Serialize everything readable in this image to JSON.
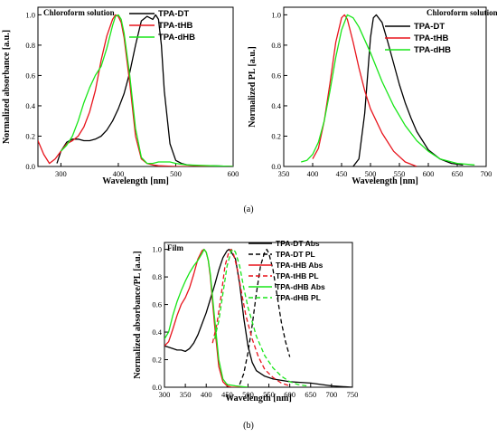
{
  "colors": {
    "black": "#000000",
    "red": "#e8141c",
    "green": "#19e619",
    "axis": "#000000"
  },
  "captions": {
    "a": "(a)",
    "b": "(b)"
  },
  "chart_data": [
    {
      "type": "line",
      "panel": "a-left",
      "annotation": "Chloroform solution",
      "xlabel": "Wavelength [nm]",
      "ylabel": "Normalized absorbance [a.u.]",
      "xlim": [
        260,
        600
      ],
      "ylim": [
        0,
        1.05
      ],
      "xticks": [
        300,
        400,
        500,
        600
      ],
      "xtick_labels": [
        "300",
        "400",
        "500",
        "600"
      ],
      "yticks": [
        0.0,
        0.2,
        0.4,
        0.6,
        0.8,
        1.0
      ],
      "ytick_labels": [
        "0.0",
        "0.2",
        "0.4",
        "0.6",
        "0.8",
        "1.0"
      ],
      "series": [
        {
          "name": "TPA-DT",
          "color": "#000000",
          "dash": "solid",
          "x": [
            293,
            300,
            310,
            320,
            330,
            340,
            350,
            360,
            370,
            380,
            390,
            400,
            410,
            420,
            430,
            440,
            450,
            460,
            465,
            470,
            475,
            480,
            490,
            500,
            510,
            520,
            540,
            560,
            600
          ],
          "y": [
            0.02,
            0.1,
            0.16,
            0.18,
            0.18,
            0.17,
            0.17,
            0.18,
            0.2,
            0.24,
            0.3,
            0.38,
            0.48,
            0.62,
            0.8,
            0.96,
            0.99,
            0.97,
            1.0,
            0.97,
            0.8,
            0.5,
            0.15,
            0.04,
            0.02,
            0.01,
            0.005,
            0.005,
            0.0
          ]
        },
        {
          "name": "TPA-tHB",
          "color": "#e8141c",
          "dash": "solid",
          "x": [
            260,
            270,
            280,
            290,
            300,
            310,
            320,
            330,
            340,
            350,
            360,
            370,
            380,
            390,
            395,
            400,
            405,
            410,
            420,
            430,
            440,
            450,
            460,
            470,
            500,
            600
          ],
          "y": [
            0.17,
            0.08,
            0.02,
            0.05,
            0.1,
            0.15,
            0.17,
            0.2,
            0.26,
            0.36,
            0.5,
            0.7,
            0.86,
            0.97,
            1.0,
            0.99,
            0.95,
            0.85,
            0.55,
            0.2,
            0.05,
            0.02,
            0.01,
            0.005,
            0.0,
            0.0
          ]
        },
        {
          "name": "TPA-dHB",
          "color": "#19e619",
          "dash": "solid",
          "x": [
            300,
            310,
            320,
            330,
            340,
            350,
            360,
            370,
            380,
            390,
            395,
            400,
            405,
            410,
            420,
            430,
            440,
            450,
            460,
            470,
            480,
            490,
            500,
            520,
            600
          ],
          "y": [
            0.1,
            0.14,
            0.2,
            0.3,
            0.42,
            0.52,
            0.6,
            0.66,
            0.78,
            0.93,
            0.99,
            1.0,
            0.97,
            0.88,
            0.6,
            0.25,
            0.06,
            0.02,
            0.02,
            0.03,
            0.03,
            0.03,
            0.02,
            0.01,
            0.0
          ]
        }
      ]
    },
    {
      "type": "line",
      "panel": "a-right",
      "annotation": "Chloroform solution",
      "xlabel": "Wavelength [nm]",
      "ylabel": "Normalized PL [a.u.]",
      "xlim": [
        350,
        700
      ],
      "ylim": [
        0,
        1.05
      ],
      "xticks": [
        350,
        400,
        450,
        500,
        550,
        600,
        650,
        700
      ],
      "xtick_labels": [
        "350",
        "400",
        "450",
        "500",
        "550",
        "600",
        "650",
        "700"
      ],
      "yticks": [
        0.0,
        0.2,
        0.4,
        0.6,
        0.8,
        1.0
      ],
      "ytick_labels": [
        "0.0",
        "0.2",
        "0.4",
        "0.6",
        "0.8",
        "1.0"
      ],
      "series": [
        {
          "name": "TPA-DT",
          "color": "#000000",
          "dash": "solid",
          "x": [
            470,
            480,
            490,
            500,
            505,
            510,
            520,
            530,
            540,
            550,
            560,
            570,
            580,
            600,
            620,
            640,
            660
          ],
          "y": [
            0.0,
            0.05,
            0.35,
            0.85,
            0.98,
            1.0,
            0.95,
            0.82,
            0.68,
            0.54,
            0.42,
            0.32,
            0.23,
            0.11,
            0.05,
            0.02,
            0.01
          ]
        },
        {
          "name": "TPA-tHB",
          "color": "#e8141c",
          "dash": "solid",
          "x": [
            400,
            410,
            420,
            430,
            440,
            450,
            455,
            460,
            470,
            480,
            490,
            500,
            520,
            540,
            560,
            580
          ],
          "y": [
            0.05,
            0.12,
            0.3,
            0.55,
            0.82,
            0.98,
            1.0,
            0.97,
            0.82,
            0.65,
            0.5,
            0.38,
            0.22,
            0.1,
            0.03,
            0.0
          ]
        },
        {
          "name": "TPA-dHB",
          "color": "#19e619",
          "dash": "solid",
          "x": [
            380,
            390,
            400,
            410,
            420,
            430,
            440,
            450,
            460,
            470,
            480,
            500,
            520,
            540,
            560,
            580,
            600,
            620,
            650,
            680
          ],
          "y": [
            0.03,
            0.04,
            0.08,
            0.16,
            0.3,
            0.5,
            0.72,
            0.9,
            1.0,
            0.98,
            0.92,
            0.75,
            0.56,
            0.4,
            0.27,
            0.17,
            0.1,
            0.05,
            0.02,
            0.01
          ]
        }
      ]
    },
    {
      "type": "line",
      "panel": "b",
      "annotation": "Film",
      "xlabel": "Wavelength [nm]",
      "ylabel": "Normalized absorbance/PL [a.u.]",
      "xlim": [
        300,
        750
      ],
      "ylim": [
        0,
        1.05
      ],
      "xticks": [
        300,
        350,
        400,
        450,
        500,
        550,
        600,
        650,
        700,
        750
      ],
      "xtick_labels": [
        "300",
        "350",
        "400",
        "450",
        "500",
        "550",
        "600",
        "650",
        "700",
        "750"
      ],
      "yticks": [
        0.0,
        0.2,
        0.4,
        0.6,
        0.8,
        1.0
      ],
      "ytick_labels": [
        "0.0",
        "0.2",
        "0.4",
        "0.6",
        "0.8",
        "1.0"
      ],
      "series": [
        {
          "name": "TPA-DT Abs",
          "color": "#000000",
          "dash": "solid",
          "x": [
            300,
            310,
            320,
            330,
            340,
            350,
            360,
            370,
            380,
            390,
            400,
            410,
            420,
            430,
            440,
            450,
            455,
            460,
            470,
            480,
            490,
            500,
            510,
            520,
            540,
            560,
            600,
            650,
            700,
            750
          ],
          "y": [
            0.3,
            0.29,
            0.28,
            0.27,
            0.27,
            0.26,
            0.28,
            0.32,
            0.38,
            0.46,
            0.54,
            0.64,
            0.74,
            0.85,
            0.94,
            0.99,
            1.0,
            0.98,
            0.93,
            0.75,
            0.5,
            0.3,
            0.18,
            0.12,
            0.08,
            0.06,
            0.04,
            0.03,
            0.01,
            0.0
          ]
        },
        {
          "name": "TPA-DT PL",
          "color": "#000000",
          "dash": "dashed",
          "x": [
            480,
            490,
            500,
            510,
            520,
            530,
            540,
            545,
            550,
            560,
            570,
            580,
            590,
            600
          ],
          "y": [
            0.02,
            0.1,
            0.25,
            0.45,
            0.68,
            0.88,
            0.98,
            1.0,
            0.97,
            0.85,
            0.66,
            0.47,
            0.33,
            0.22
          ]
        },
        {
          "name": "TPA-tHB Abs",
          "color": "#e8141c",
          "dash": "solid",
          "x": [
            300,
            310,
            320,
            330,
            340,
            350,
            360,
            370,
            380,
            390,
            395,
            400,
            405,
            410,
            420,
            430,
            440,
            450,
            460,
            470,
            500
          ],
          "y": [
            0.3,
            0.33,
            0.42,
            0.52,
            0.6,
            0.65,
            0.72,
            0.82,
            0.93,
            0.99,
            1.0,
            0.98,
            0.92,
            0.8,
            0.45,
            0.15,
            0.04,
            0.01,
            0.0,
            0.0,
            0.0
          ]
        },
        {
          "name": "TPA-tHB PL",
          "color": "#e8141c",
          "dash": "dashed",
          "x": [
            415,
            425,
            435,
            445,
            455,
            460,
            465,
            475,
            485,
            495,
            510,
            525,
            540,
            560,
            580,
            600
          ],
          "y": [
            0.32,
            0.45,
            0.65,
            0.88,
            0.99,
            1.0,
            0.97,
            0.85,
            0.68,
            0.52,
            0.35,
            0.22,
            0.13,
            0.07,
            0.03,
            0.01
          ]
        },
        {
          "name": "TPA-dHB Abs",
          "color": "#19e619",
          "dash": "solid",
          "x": [
            300,
            310,
            320,
            330,
            340,
            350,
            360,
            370,
            380,
            390,
            395,
            400,
            405,
            410,
            420,
            430,
            440,
            450,
            470,
            500
          ],
          "y": [
            0.35,
            0.4,
            0.52,
            0.62,
            0.7,
            0.77,
            0.83,
            0.88,
            0.92,
            0.97,
            1.0,
            0.98,
            0.92,
            0.82,
            0.5,
            0.2,
            0.06,
            0.02,
            0.01,
            0.0
          ]
        },
        {
          "name": "TPA-dHB PL",
          "color": "#19e619",
          "dash": "dashed",
          "x": [
            420,
            430,
            440,
            450,
            460,
            465,
            470,
            480,
            490,
            500,
            520,
            540,
            560,
            580,
            600,
            620,
            640
          ],
          "y": [
            0.35,
            0.48,
            0.68,
            0.88,
            0.99,
            1.0,
            0.98,
            0.88,
            0.72,
            0.58,
            0.37,
            0.23,
            0.14,
            0.08,
            0.04,
            0.02,
            0.01
          ]
        }
      ]
    }
  ]
}
